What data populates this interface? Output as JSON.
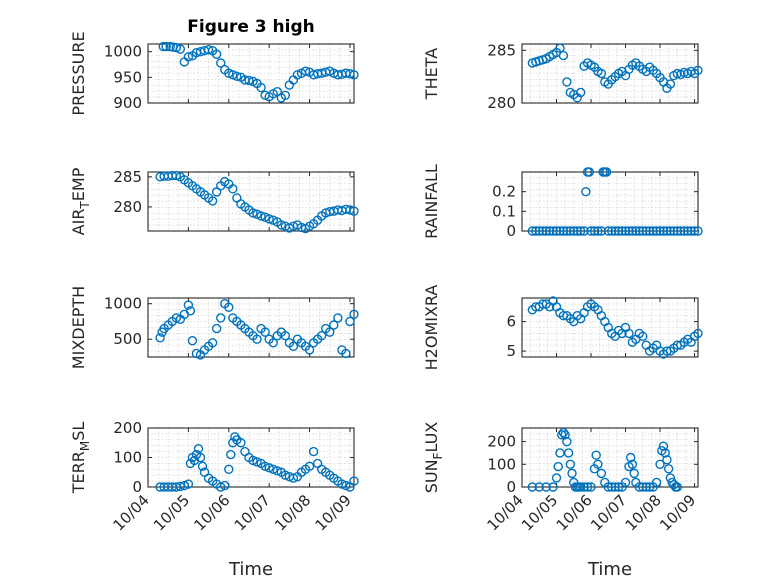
{
  "chart_data": [
    {
      "type": "scatter",
      "title": "Figure 3 high",
      "ylabel": "PRESSURE",
      "ylim": [
        900,
        1015
      ],
      "yticks": [
        900,
        950,
        1000
      ],
      "xlim": [
        0,
        5.1
      ],
      "color": "#0072BD",
      "x": [
        0.38,
        0.45,
        0.55,
        0.62,
        0.7,
        0.8,
        0.9,
        1.0,
        1.1,
        1.2,
        1.3,
        1.4,
        1.5,
        1.6,
        1.7,
        1.8,
        1.9,
        2.0,
        2.1,
        2.2,
        2.3,
        2.4,
        2.5,
        2.6,
        2.7,
        2.8,
        2.9,
        3.0,
        3.1,
        3.2,
        3.3,
        3.4,
        3.5,
        3.6,
        3.7,
        3.8,
        3.9,
        4.0,
        4.1,
        4.2,
        4.3,
        4.4,
        4.5,
        4.6,
        4.7,
        4.8,
        4.9,
        5.0,
        5.1
      ],
      "y": [
        1010,
        1010,
        1010,
        1009,
        1008,
        1005,
        980,
        990,
        992,
        998,
        1000,
        1002,
        1004,
        1002,
        995,
        978,
        965,
        958,
        955,
        952,
        950,
        945,
        944,
        942,
        938,
        930,
        915,
        912,
        918,
        922,
        910,
        915,
        935,
        945,
        955,
        958,
        962,
        960,
        955,
        957,
        958,
        960,
        962,
        958,
        955,
        956,
        958,
        957,
        955
      ]
    },
    {
      "type": "scatter",
      "ylabel": "THETA",
      "ylim": [
        280,
        285.6
      ],
      "yticks": [
        280,
        285
      ],
      "xlim": [
        0,
        5.1
      ],
      "color": "#0072BD",
      "x": [
        0.3,
        0.4,
        0.5,
        0.6,
        0.7,
        0.8,
        0.9,
        1.0,
        1.1,
        1.2,
        1.3,
        1.4,
        1.5,
        1.6,
        1.7,
        1.8,
        1.9,
        2.0,
        2.1,
        2.2,
        2.3,
        2.4,
        2.5,
        2.6,
        2.7,
        2.8,
        2.9,
        3.0,
        3.1,
        3.2,
        3.3,
        3.4,
        3.5,
        3.6,
        3.7,
        3.8,
        3.9,
        4.0,
        4.1,
        4.2,
        4.3,
        4.4,
        4.5,
        4.6,
        4.7,
        4.8,
        4.9,
        5.0,
        5.1
      ],
      "y": [
        283.8,
        283.9,
        284.0,
        284.1,
        284.2,
        284.4,
        284.6,
        284.8,
        285.2,
        284.5,
        282.0,
        281.0,
        280.8,
        280.5,
        281.0,
        283.5,
        283.8,
        283.6,
        283.4,
        283.0,
        282.8,
        282.0,
        281.8,
        282.2,
        282.5,
        282.8,
        283.0,
        282.6,
        283.2,
        283.6,
        283.8,
        283.5,
        283.2,
        283.0,
        283.4,
        283.1,
        282.8,
        282.4,
        282.0,
        281.4,
        281.8,
        282.6,
        282.8,
        282.7,
        282.9,
        282.8,
        283.0,
        282.8,
        283.1
      ]
    },
    {
      "type": "scatter",
      "ylabel": "AIR_T_EMP",
      "ylim": [
        276,
        285.8
      ],
      "yticks": [
        280,
        285
      ],
      "xlim": [
        0,
        5.1
      ],
      "color": "#0072BD",
      "x": [
        0.3,
        0.4,
        0.5,
        0.6,
        0.7,
        0.8,
        0.9,
        1.0,
        1.1,
        1.2,
        1.3,
        1.4,
        1.5,
        1.6,
        1.7,
        1.8,
        1.9,
        2.0,
        2.1,
        2.2,
        2.3,
        2.4,
        2.5,
        2.6,
        2.7,
        2.8,
        2.9,
        3.0,
        3.1,
        3.2,
        3.3,
        3.4,
        3.5,
        3.6,
        3.7,
        3.8,
        3.9,
        4.0,
        4.1,
        4.2,
        4.3,
        4.4,
        4.5,
        4.6,
        4.7,
        4.8,
        4.9,
        5.0,
        5.1
      ],
      "y": [
        285.0,
        285.1,
        285.1,
        285.2,
        285.2,
        285.0,
        284.5,
        284.0,
        283.5,
        283.0,
        282.5,
        282.0,
        281.5,
        281.0,
        282.5,
        283.5,
        284.2,
        283.8,
        283.0,
        281.5,
        280.5,
        280.0,
        279.5,
        279.0,
        278.8,
        278.5,
        278.3,
        278.0,
        277.8,
        277.5,
        277.0,
        276.8,
        276.5,
        276.8,
        277.0,
        276.6,
        276.4,
        276.8,
        277.2,
        277.8,
        278.5,
        279.0,
        279.2,
        279.3,
        279.5,
        279.4,
        279.6,
        279.5,
        279.3
      ]
    },
    {
      "type": "scatter",
      "ylabel": "RAINFALL",
      "ylim": [
        0,
        0.3
      ],
      "yticks": [
        0,
        0.1,
        0.2
      ],
      "xlim": [
        0,
        5.1
      ],
      "color": "#0072BD",
      "x": [
        0.3,
        0.4,
        0.5,
        0.6,
        0.7,
        0.8,
        0.9,
        1.0,
        1.1,
        1.2,
        1.3,
        1.4,
        1.5,
        1.6,
        1.7,
        1.8,
        1.85,
        1.9,
        1.95,
        2.0,
        2.1,
        2.2,
        2.3,
        2.35,
        2.4,
        2.45,
        2.5,
        2.6,
        2.7,
        2.8,
        2.9,
        3.0,
        3.1,
        3.2,
        3.3,
        3.4,
        3.5,
        3.6,
        3.7,
        3.8,
        3.9,
        4.0,
        4.1,
        4.2,
        4.3,
        4.4,
        4.5,
        4.6,
        4.7,
        4.8,
        4.9,
        5.0,
        5.1
      ],
      "y": [
        0,
        0,
        0,
        0,
        0,
        0,
        0,
        0,
        0,
        0,
        0,
        0,
        0,
        0,
        0,
        0,
        0.2,
        0.3,
        0.3,
        0,
        0,
        0,
        0,
        0.3,
        0.3,
        0.3,
        0,
        0,
        0,
        0,
        0,
        0,
        0,
        0,
        0,
        0,
        0,
        0,
        0,
        0,
        0,
        0,
        0,
        0,
        0,
        0,
        0,
        0,
        0,
        0,
        0,
        0,
        0
      ]
    },
    {
      "type": "scatter",
      "ylabel": "MIXDEPTH",
      "ylim": [
        250,
        1080
      ],
      "yticks": [
        500,
        1000
      ],
      "xlim": [
        0,
        5.1
      ],
      "color": "#0072BD",
      "x": [
        0.3,
        0.35,
        0.4,
        0.5,
        0.6,
        0.7,
        0.8,
        0.9,
        1.0,
        1.05,
        1.1,
        1.2,
        1.3,
        1.4,
        1.5,
        1.6,
        1.7,
        1.8,
        1.9,
        2.0,
        2.1,
        2.2,
        2.3,
        2.4,
        2.5,
        2.6,
        2.7,
        2.8,
        2.9,
        3.0,
        3.1,
        3.2,
        3.3,
        3.4,
        3.5,
        3.6,
        3.7,
        3.8,
        3.9,
        4.0,
        4.1,
        4.2,
        4.3,
        4.4,
        4.5,
        4.6,
        4.7,
        4.8,
        4.9,
        5.0,
        5.1
      ],
      "y": [
        520,
        600,
        650,
        700,
        750,
        800,
        780,
        850,
        980,
        900,
        480,
        300,
        280,
        350,
        400,
        450,
        650,
        800,
        1000,
        950,
        800,
        750,
        700,
        650,
        600,
        550,
        500,
        650,
        600,
        500,
        450,
        550,
        600,
        550,
        450,
        400,
        500,
        450,
        400,
        350,
        450,
        500,
        550,
        650,
        600,
        700,
        800,
        350,
        300,
        750,
        850
      ]
    },
    {
      "type": "scatter",
      "ylabel": "H2OMIXRA",
      "ylim": [
        4.8,
        6.8
      ],
      "yticks": [
        5,
        6
      ],
      "xlim": [
        0,
        5.1
      ],
      "color": "#0072BD",
      "x": [
        0.3,
        0.4,
        0.5,
        0.6,
        0.7,
        0.8,
        0.9,
        1.0,
        1.1,
        1.2,
        1.3,
        1.4,
        1.5,
        1.6,
        1.7,
        1.8,
        1.9,
        2.0,
        2.1,
        2.2,
        2.3,
        2.4,
        2.5,
        2.6,
        2.7,
        2.8,
        2.9,
        3.0,
        3.1,
        3.2,
        3.3,
        3.4,
        3.5,
        3.6,
        3.7,
        3.8,
        3.9,
        4.0,
        4.1,
        4.2,
        4.3,
        4.4,
        4.5,
        4.6,
        4.7,
        4.8,
        4.9,
        5.0,
        5.1
      ],
      "y": [
        6.4,
        6.5,
        6.5,
        6.6,
        6.6,
        6.5,
        6.7,
        6.5,
        6.3,
        6.2,
        6.2,
        6.1,
        6.0,
        6.2,
        6.1,
        6.3,
        6.5,
        6.6,
        6.5,
        6.4,
        6.2,
        6.0,
        5.8,
        5.6,
        5.5,
        5.7,
        5.6,
        5.8,
        5.6,
        5.3,
        5.4,
        5.6,
        5.5,
        5.2,
        5.0,
        5.1,
        5.2,
        5.0,
        4.9,
        5.0,
        5.0,
        5.1,
        5.2,
        5.2,
        5.3,
        5.4,
        5.3,
        5.5,
        5.6
      ]
    },
    {
      "type": "scatter",
      "ylabel": "TERR_M_SL",
      "ylim": [
        0,
        200
      ],
      "yticks": [
        0,
        100,
        200
      ],
      "xlim": [
        0,
        5.1
      ],
      "color": "#0072BD",
      "x": [
        0.3,
        0.4,
        0.5,
        0.6,
        0.7,
        0.8,
        0.9,
        1.0,
        1.05,
        1.1,
        1.15,
        1.2,
        1.25,
        1.3,
        1.35,
        1.4,
        1.5,
        1.6,
        1.7,
        1.8,
        1.9,
        2.0,
        2.05,
        2.1,
        2.15,
        2.2,
        2.3,
        2.4,
        2.5,
        2.6,
        2.7,
        2.8,
        2.9,
        3.0,
        3.1,
        3.2,
        3.3,
        3.4,
        3.5,
        3.6,
        3.7,
        3.8,
        3.9,
        4.0,
        4.1,
        4.2,
        4.3,
        4.4,
        4.5,
        4.6,
        4.7,
        4.8,
        4.9,
        5.0,
        5.1
      ],
      "y": [
        0,
        0,
        0,
        0,
        0,
        2,
        5,
        10,
        80,
        100,
        90,
        110,
        130,
        100,
        70,
        50,
        30,
        20,
        10,
        0,
        5,
        60,
        110,
        150,
        170,
        160,
        150,
        120,
        100,
        90,
        85,
        80,
        70,
        65,
        60,
        55,
        50,
        40,
        35,
        30,
        35,
        50,
        60,
        70,
        120,
        80,
        60,
        50,
        40,
        30,
        20,
        10,
        5,
        0,
        20
      ]
    },
    {
      "type": "scatter",
      "ylabel": "SUN_F_LUX",
      "ylim": [
        0,
        260
      ],
      "yticks": [
        0,
        100,
        200
      ],
      "xlim": [
        0,
        5.1
      ],
      "color": "#0072BD",
      "x": [
        0.3,
        0.5,
        0.7,
        0.9,
        1.0,
        1.05,
        1.1,
        1.15,
        1.2,
        1.25,
        1.3,
        1.35,
        1.4,
        1.45,
        1.5,
        1.55,
        1.6,
        1.65,
        1.7,
        1.8,
        1.9,
        2.0,
        2.1,
        2.15,
        2.2,
        2.3,
        2.4,
        2.5,
        2.6,
        2.7,
        2.8,
        2.9,
        3.0,
        3.1,
        3.15,
        3.2,
        3.25,
        3.3,
        3.4,
        3.5,
        3.6,
        3.7,
        3.8,
        3.9,
        4.0,
        4.05,
        4.1,
        4.15,
        4.2,
        4.25,
        4.3,
        4.35,
        4.4,
        4.45,
        4.5
      ],
      "y": [
        0,
        0,
        0,
        0,
        40,
        90,
        150,
        230,
        240,
        230,
        200,
        150,
        100,
        60,
        20,
        0,
        0,
        0,
        0,
        0,
        0,
        0,
        80,
        140,
        100,
        60,
        20,
        0,
        0,
        0,
        0,
        0,
        20,
        90,
        130,
        100,
        60,
        20,
        0,
        0,
        0,
        0,
        0,
        20,
        100,
        160,
        180,
        150,
        120,
        80,
        40,
        20,
        10,
        0,
        0
      ]
    }
  ],
  "xaxis": {
    "ticks": [
      0,
      1,
      2,
      3,
      4,
      5
    ],
    "tick_labels": [
      "10/04",
      "10/05",
      "10/06",
      "10/07",
      "10/08",
      "10/09"
    ],
    "label": "Time"
  }
}
